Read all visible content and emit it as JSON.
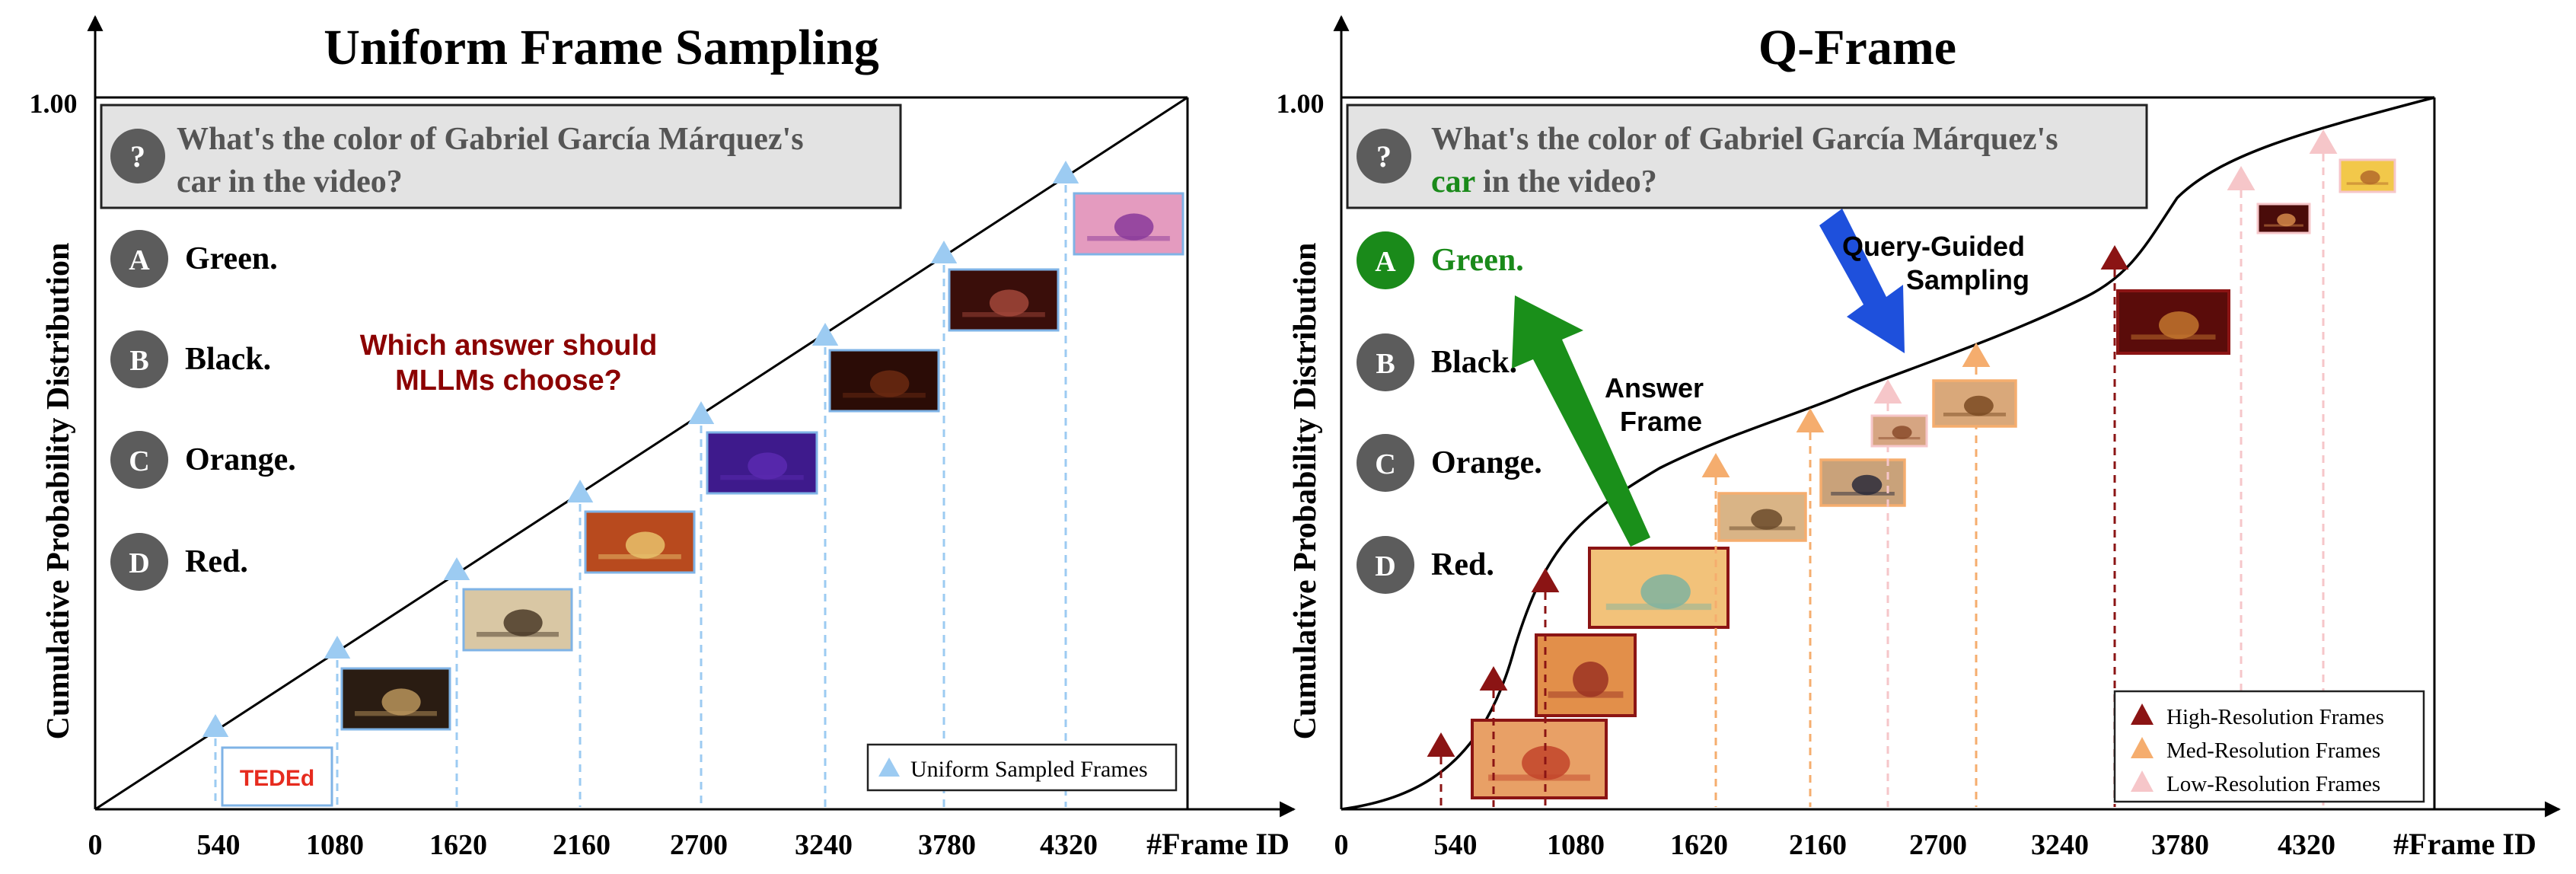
{
  "colors": {
    "uniform_blue": "#9ccbf2",
    "uniform_frame_border": "#7fb3e6",
    "high_res": "#8b1414",
    "med_res": "#f5ad6e",
    "low_res": "#f6c6c9",
    "correct_green": "#1a8a1a",
    "option_circle": "#5c5c5c",
    "question_box": "#e3e3e3",
    "query_arrow": "#1e50dc",
    "answer_arrow": "#1a8f1a",
    "annotation_red": "#8b0000"
  },
  "left": {
    "title": "Uniform Frame Sampling",
    "ylabel": "Cumulative Probability Distribution",
    "xlabel": "#Frame ID",
    "y_max_label": "1.00",
    "x_ticks": [
      "0",
      "540",
      "1080",
      "1620",
      "2160",
      "2700",
      "3240",
      "3780",
      "4320"
    ],
    "question_icon": "?",
    "question_line1": "What's the color of Gabriel García Márquez's",
    "question_line2": "car in the video?",
    "options": [
      {
        "letter": "A",
        "text": "Green."
      },
      {
        "letter": "B",
        "text": "Black."
      },
      {
        "letter": "C",
        "text": "Orange."
      },
      {
        "letter": "D",
        "text": "Red."
      }
    ],
    "annotation_line1": "Which answer should",
    "annotation_line2": "MLLMs choose?",
    "legend": "Uniform Sampled Frames",
    "first_frame_text": "TEDEd"
  },
  "right": {
    "title": "Q-Frame",
    "ylabel": "Cumulative Probability Distribution",
    "xlabel": "#Frame ID",
    "y_max_label": "1.00",
    "x_ticks": [
      "0",
      "540",
      "1080",
      "1620",
      "2160",
      "2700",
      "3240",
      "3780",
      "4320"
    ],
    "question_icon": "?",
    "question_line1": "What's the color of Gabriel García Márquez's",
    "question_line2_highlight": "car",
    "question_line2_rest": " in the video?",
    "options": [
      {
        "letter": "A",
        "text": "Green."
      },
      {
        "letter": "B",
        "text": "Black."
      },
      {
        "letter": "C",
        "text": "Orange."
      },
      {
        "letter": "D",
        "text": "Red."
      }
    ],
    "query_guided_line1": "Query-Guided",
    "query_guided_line2": "Sampling",
    "answer_frame_line1": "Answer",
    "answer_frame_line2": "Frame",
    "legend": [
      {
        "label": "High-Resolution Frames",
        "level": "high"
      },
      {
        "label": "Med-Resolution Frames",
        "level": "med"
      },
      {
        "label": "Low-Resolution Frames",
        "level": "low"
      }
    ]
  }
}
